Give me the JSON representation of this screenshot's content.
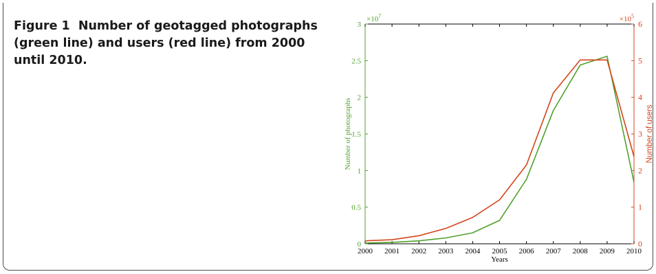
{
  "caption": {
    "figure_label": "Figure 1",
    "text": "Number of geotagged photographs (green line) and users (red line) from 2000 until 2010."
  },
  "colors": {
    "photographs": "#4fa12b",
    "users": "#d4451c",
    "axis": "#000000"
  },
  "chart_data": {
    "type": "line",
    "categories": [
      "2000",
      "2001",
      "2002",
      "2003",
      "2004",
      "2005",
      "2006",
      "2007",
      "2008",
      "2009",
      "2010"
    ],
    "x": [
      2000,
      2001,
      2002,
      2003,
      2004,
      2005,
      2006,
      2007,
      2008,
      2009,
      2010
    ],
    "xlabel": "Years",
    "xlim": [
      2000,
      2010
    ],
    "y_left": {
      "label": "Number of photographs",
      "multiplier": "×10",
      "multiplier_exp": "7",
      "lim": [
        0,
        3
      ],
      "ticks": [
        "0",
        "0.5",
        "1",
        "1.5",
        "2",
        "2.5",
        "3"
      ],
      "tick_values": [
        0,
        0.5,
        1,
        1.5,
        2,
        2.5,
        3
      ]
    },
    "y_right": {
      "label": "Number of users",
      "multiplier": "×10",
      "multiplier_exp": "5",
      "lim": [
        0,
        6
      ],
      "ticks": [
        "0",
        "1",
        "2",
        "3",
        "4",
        "5",
        "6"
      ],
      "tick_values": [
        0,
        1,
        2,
        3,
        4,
        5,
        6
      ]
    },
    "series": [
      {
        "axis": "left",
        "color": "#4fa12b",
        "values": [
          0.01,
          0.02,
          0.04,
          0.08,
          0.15,
          0.32,
          0.88,
          1.82,
          2.44,
          2.56,
          0.84
        ]
      },
      {
        "axis": "right",
        "color": "#d4451c",
        "values": [
          0.08,
          0.11,
          0.22,
          0.42,
          0.72,
          1.2,
          2.15,
          4.12,
          5.02,
          5.02,
          2.38
        ]
      }
    ],
    "grid": false
  }
}
